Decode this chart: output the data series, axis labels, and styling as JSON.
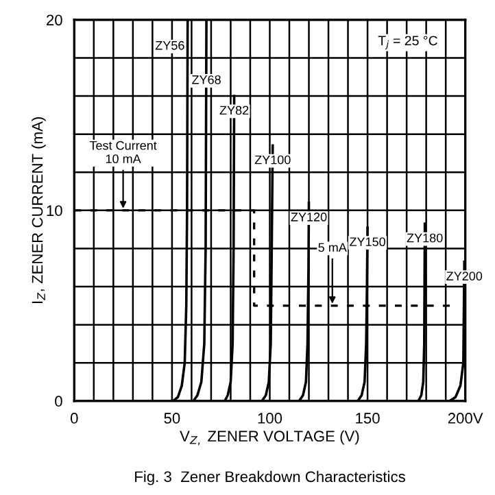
{
  "chart_data": {
    "type": "line",
    "title": "Fig. 3  Zener Breakdown Characteristics",
    "xlabel": "V$_{Z,}$ ZENER VOLTAGE (V)",
    "ylabel": "I$_{Z}$, ZENER CURRENT (mA)",
    "xlim": [
      0,
      200
    ],
    "ylim": [
      0,
      20
    ],
    "xticks": [
      0,
      {
        "value": 10,
        "label": null
      },
      {
        "value": 20,
        "label": null
      },
      {
        "value": 30,
        "label": null
      },
      {
        "value": 40,
        "label": null
      },
      50,
      {
        "value": 60,
        "label": null
      },
      {
        "value": 70,
        "label": null
      },
      {
        "value": 80,
        "label": null
      },
      {
        "value": 90,
        "label": null
      },
      100,
      {
        "value": 110,
        "label": null
      },
      {
        "value": 120,
        "label": null
      },
      {
        "value": 130,
        "label": null
      },
      {
        "value": 140,
        "label": null
      },
      150,
      {
        "value": 160,
        "label": null
      },
      {
        "value": 170,
        "label": null
      },
      {
        "value": 180,
        "label": null
      },
      {
        "value": 190,
        "label": null
      },
      {
        "value": 200,
        "label": "200V"
      }
    ],
    "yticks": [
      0,
      {
        "value": 2,
        "label": null
      },
      {
        "value": 4,
        "label": null
      },
      {
        "value": 6,
        "label": null
      },
      {
        "value": 8,
        "label": null
      },
      10,
      {
        "value": 12,
        "label": null
      },
      {
        "value": 14,
        "label": null
      },
      {
        "value": 16,
        "label": null
      },
      {
        "value": 18,
        "label": null
      },
      20
    ],
    "grid": true,
    "legend": false,
    "marker": "none",
    "line_style": "solid",
    "series": [
      {
        "name": "ZY56",
        "color": "#000000",
        "x": [
          50.5,
          53,
          55,
          56.5,
          57.3,
          57.7,
          58
        ],
        "values": [
          0,
          0.2,
          0.8,
          2,
          5,
          10,
          20
        ]
      },
      {
        "name": "ZY68",
        "color": "#000000",
        "x": [
          61,
          63,
          65,
          66.5,
          67.2,
          67.6
        ],
        "values": [
          0,
          0.3,
          1,
          3,
          8,
          20
        ]
      },
      {
        "name": "ZY82",
        "color": "#000000",
        "x": [
          77,
          78.5,
          80,
          81,
          81.5,
          81.8
        ],
        "values": [
          0,
          0.3,
          1,
          3,
          8,
          16
        ]
      },
      {
        "name": "ZY100",
        "color": "#000000",
        "x": [
          96,
          98,
          99.5,
          100.5,
          101,
          101.5
        ],
        "values": [
          0,
          0.3,
          1,
          3,
          8,
          13.4
        ]
      },
      {
        "name": "ZY120",
        "color": "#000000",
        "x": [
          115,
          117,
          118.5,
          119.3,
          119.8,
          120
        ],
        "values": [
          0,
          0.3,
          1,
          3,
          7,
          10.4
        ]
      },
      {
        "name": "ZY150",
        "color": "#000000",
        "x": [
          145,
          147,
          148.5,
          149.3,
          149.7,
          150
        ],
        "values": [
          0,
          0.3,
          1,
          3,
          6,
          9.1
        ]
      },
      {
        "name": "ZY180",
        "color": "#000000",
        "x": [
          176,
          177.5,
          178.5,
          179,
          179.3
        ],
        "values": [
          0,
          0.3,
          1,
          3,
          9.3
        ]
      },
      {
        "name": "ZY200",
        "color": "#000000",
        "x": [
          192,
          195,
          197.5,
          199,
          199.5
        ],
        "values": [
          0,
          0.2,
          0.8,
          2,
          7.3
        ]
      },
      {
        "color": "#000000",
        "line_style": "dashed",
        "x": [
          0,
          92,
          92,
          194
        ],
        "values": [
          10,
          10,
          5,
          5
        ]
      }
    ],
    "annotations": [
      {
        "text": "Test Current\n10 mA",
        "x": 25,
        "y": 10
      },
      {
        "text": "5 mA",
        "x": 132,
        "y": 5
      },
      "T$_{j}$ = 25 °C"
    ]
  }
}
